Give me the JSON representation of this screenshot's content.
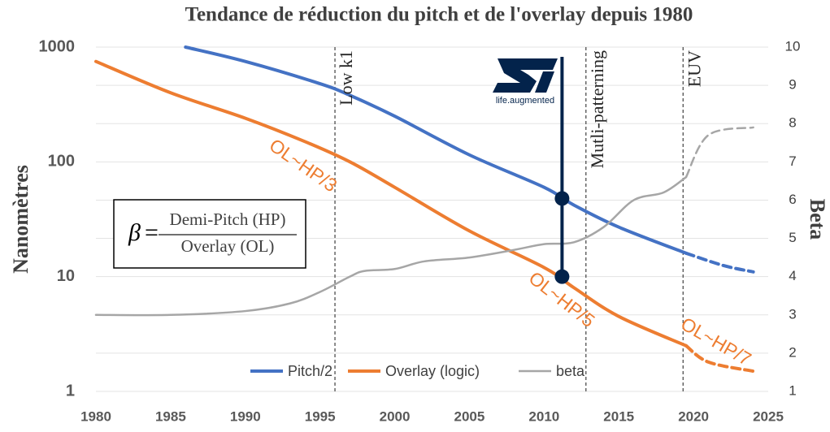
{
  "chart_data": {
    "type": "line",
    "title": "Tendance de réduction du pitch et de l'overlay depuis 1980",
    "y_label": "Nanomètres",
    "y2_label": "Beta",
    "xlim": [
      1980,
      2025
    ],
    "xticks": [
      1980,
      1985,
      1990,
      1995,
      2000,
      2005,
      2010,
      2015,
      2020,
      2025
    ],
    "ylim": [
      1,
      1000
    ],
    "yticks": [
      1,
      10,
      100,
      1000
    ],
    "y_log": true,
    "y2lim": [
      1,
      10
    ],
    "y2ticks": [
      1,
      2,
      3,
      4,
      5,
      6,
      7,
      8,
      9,
      10
    ],
    "grid": true,
    "legend": "bottom",
    "dashed_from": 2019.5,
    "series": [
      {
        "name": "Pitch/2",
        "color": "#4472c4",
        "x": [
          1986,
          1990,
          1995,
          1997,
          2000,
          2005,
          2010,
          2012,
          2015,
          2019.5,
          2022,
          2024
        ],
        "values": [
          1000,
          750,
          480,
          380,
          250,
          115,
          60,
          42,
          27,
          16,
          12.5,
          11
        ]
      },
      {
        "name": "Overlay (logic)",
        "color": "#ed7d31",
        "x": [
          1980,
          1985,
          1990,
          1994,
          1997,
          2000,
          2005,
          2010,
          2012,
          2015,
          2019.5,
          2021,
          2024
        ],
        "values": [
          750,
          400,
          240,
          150,
          100,
          60,
          25,
          12,
          8,
          4.5,
          2.5,
          1.8,
          1.5
        ]
      },
      {
        "name": "beta",
        "color": "#a6a6a6",
        "axis": "y2",
        "x": [
          1980,
          1985,
          1990,
          1993,
          1995,
          1997,
          1998,
          2000,
          2002,
          2005,
          2008,
          2010,
          2012,
          2014,
          2016,
          2018,
          2019.5,
          2021,
          2024
        ],
        "values": [
          3.0,
          3.0,
          3.1,
          3.3,
          3.6,
          4.0,
          4.15,
          4.2,
          4.4,
          4.5,
          4.7,
          4.85,
          4.9,
          5.3,
          6.0,
          6.2,
          6.6,
          7.7,
          7.9
        ]
      }
    ],
    "vlines": [
      {
        "x": 1996,
        "label": "Low k1"
      },
      {
        "x": 2012.8,
        "label": "Mutli-patterning"
      },
      {
        "x": 2019.3,
        "label": "EUV"
      }
    ],
    "annotations": [
      "OL~HP/3",
      "OL~HP/5",
      "OL~HP/7"
    ],
    "formula": {
      "symbol": "β",
      "equals": "=",
      "numerator": "Demi-Pitch (HP)",
      "denominator": "Overlay (OL)"
    },
    "logo_text": "life.augmented",
    "marker": {
      "x": 2011.2,
      "points": [
        48,
        10
      ]
    }
  }
}
